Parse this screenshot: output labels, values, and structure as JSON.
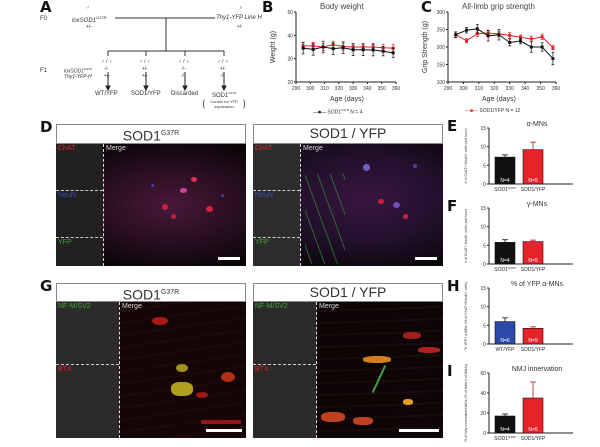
{
  "panels": {
    "A": {
      "label": "A",
      "gen_f0": "F0",
      "gen_f1": "F1",
      "male_symbol": "♂",
      "female_symbol": "♀",
      "mf_symbol": "♂ / ♀",
      "parent_left": {
        "name": "loxSOD1",
        "sup": "G37R",
        "genotype": "+/-"
      },
      "parent_right": {
        "name": "Thy1-YFP Line H",
        "genotype": "+/-"
      },
      "row_labels": {
        "lox": "loxSOD1",
        "lox_sup": "G37R",
        "thy": "Thy1-YFP-H"
      },
      "offspring": [
        {
          "lox": "-/-",
          "thy": "+/-",
          "result": "WT/YFP"
        },
        {
          "lox": "+/-",
          "thy": "+/-",
          "result": "SOD1/YFP"
        },
        {
          "lox": "-/-",
          "thy": "-/-",
          "result": "Discarded"
        },
        {
          "lox": "+/-",
          "thy": "-/-",
          "result": "SOD1",
          "result_sup": "G37R",
          "note": "Control for YFP expression"
        }
      ]
    },
    "B": {
      "label": "B"
    },
    "C": {
      "label": "C"
    },
    "D": {
      "label": "D",
      "left_title": "SOD1",
      "left_sup": "G37R",
      "right_title": "SOD1 / YFP",
      "channels": [
        "ChAT",
        "NeuN",
        "YFP"
      ],
      "merge": "Merge"
    },
    "E": {
      "label": "E"
    },
    "F": {
      "label": "F"
    },
    "G": {
      "label": "G",
      "left_title": "SOD1",
      "left_sup": "G37R",
      "right_title": "SOD1 / YFP",
      "channels": [
        "NF-M/SV2",
        "BTX"
      ],
      "merge": "Merge"
    },
    "H": {
      "label": "H"
    },
    "I": {
      "label": "I"
    }
  },
  "colors": {
    "sod1_g37r": "#111111",
    "sod1_yfp": "#e8222a",
    "wt_yfp": "#2b4aa8",
    "chat": "#d9262c",
    "neun": "#3f4fb8",
    "yfp": "#3fa83a",
    "btx": "#d9262c",
    "nfm": "#3fa83a"
  },
  "chart_data": [
    {
      "id": "B",
      "type": "line",
      "title": "Body weight",
      "xlabel": "Age (days)",
      "ylabel": "Weight (g)",
      "xlim": [
        290,
        360
      ],
      "ylim": [
        20,
        50
      ],
      "xticks": [
        290,
        300,
        310,
        320,
        330,
        340,
        350,
        360
      ],
      "yticks": [
        20,
        30,
        40,
        50
      ],
      "x": [
        295,
        302,
        309,
        316,
        323,
        330,
        337,
        344,
        351,
        358
      ],
      "series": [
        {
          "name": "SOD1G37R N = 4",
          "legend": "SOD1",
          "legend_sup": "G37R",
          "legend_n": "N = 4",
          "color": "#111111",
          "values": [
            34.5,
            34,
            35,
            34.3,
            34.7,
            33.8,
            33.8,
            33.7,
            33.2,
            32.5
          ],
          "err": [
            2.5,
            2.5,
            2.5,
            2.5,
            2.5,
            2.5,
            2.5,
            2.5,
            2,
            2
          ]
        },
        {
          "name": "SOD1/YFP N = 12",
          "legend": "SOD1/YFP",
          "legend_n": "N = 12",
          "color": "#e8222a",
          "values": [
            35.5,
            35.5,
            35,
            36,
            35.2,
            35,
            35,
            35,
            34.7,
            34.5
          ],
          "err": [
            1.5,
            1.5,
            1.5,
            1.5,
            1.5,
            1.5,
            1.5,
            1.5,
            1.5,
            1.5
          ]
        }
      ]
    },
    {
      "id": "C",
      "type": "line",
      "title": "All-limb grip strength",
      "xlabel": "Age (days)",
      "ylabel": "Grip Strength (g)",
      "xlim": [
        290,
        360
      ],
      "ylim": [
        100,
        300
      ],
      "xticks": [
        290,
        300,
        310,
        320,
        330,
        340,
        350,
        360
      ],
      "yticks": [
        100,
        150,
        200,
        250,
        300
      ],
      "x": [
        295,
        302,
        309,
        316,
        323,
        330,
        337,
        344,
        351,
        358
      ],
      "series": [
        {
          "name": "SOD1G37R N = 4",
          "color": "#111111",
          "values": [
            235,
            248,
            252,
            232,
            235,
            213,
            217,
            200,
            200,
            167
          ],
          "err": [
            8,
            8,
            12,
            15,
            15,
            10,
            8,
            15,
            12,
            18
          ]
        },
        {
          "name": "SOD1/YFP N = 12",
          "color": "#e8222a",
          "values": [
            235,
            218,
            238,
            240,
            237,
            233,
            228,
            223,
            229,
            198
          ],
          "err": [
            8,
            6,
            8,
            8,
            8,
            8,
            6,
            8,
            8,
            6
          ]
        }
      ]
    },
    {
      "id": "E",
      "type": "bar",
      "title": "α-MNs",
      "ylabel": "# of ChAT+ NeuN+ cells (ant.horn)",
      "ylim": [
        0,
        15
      ],
      "yticks": [
        0,
        5,
        10,
        15
      ],
      "categories": [
        "SOD1G37R",
        "SOD1/YFP"
      ],
      "cat_labels": [
        {
          "t": "SOD1",
          "sup": "G37R"
        },
        {
          "t": "SOD1/YFP",
          "sup": ""
        }
      ],
      "values": [
        7.2,
        9.2
      ],
      "err": [
        0.6,
        2.0
      ],
      "n_labels": [
        "N=4",
        "N=5"
      ],
      "colors": [
        "#111111",
        "#e8222a"
      ]
    },
    {
      "id": "F",
      "type": "bar",
      "title": "γ-MNs",
      "ylabel": "# of ChAT+ NeuN- cells (ant.horn)",
      "ylim": [
        0,
        15
      ],
      "yticks": [
        0,
        5,
        10,
        15
      ],
      "categories": [
        "SOD1G37R",
        "SOD1/YFP"
      ],
      "cat_labels": [
        {
          "t": "SOD1",
          "sup": "G37R"
        },
        {
          "t": "SOD1/YFP",
          "sup": ""
        }
      ],
      "values": [
        5.8,
        6.0
      ],
      "err": [
        0.7,
        0.4
      ],
      "n_labels": [
        "N=4",
        "N=5"
      ],
      "colors": [
        "#111111",
        "#e8222a"
      ]
    },
    {
      "id": "H",
      "type": "bar",
      "title": "% of YFP α-MNs",
      "ylabel": "% YFP+ α-MNs (% of ChAT+/NeuN+ cells)",
      "ylim": [
        0,
        15
      ],
      "yticks": [
        0,
        5,
        10,
        15
      ],
      "categories": [
        "WT/YFP",
        "SOD1/YFP"
      ],
      "cat_labels": [
        {
          "t": "WT/YFP",
          "sup": ""
        },
        {
          "t": "SOD1/YFP",
          "sup": ""
        }
      ],
      "values": [
        6.0,
        4.2
      ],
      "err": [
        1.0,
        0.4
      ],
      "n_labels": [
        "N=6",
        "N=9"
      ],
      "colors": [
        "#2b4aa8",
        "#e8222a"
      ]
    },
    {
      "id": "I",
      "type": "bar",
      "title": "NMJ innervation",
      "ylabel": "% of fully innervated NMJs (% of total # of NMJs)",
      "ylim": [
        0,
        60
      ],
      "yticks": [
        0,
        20,
        40,
        60
      ],
      "categories": [
        "SOD1G37R",
        "SOD1/YFP"
      ],
      "cat_labels": [
        {
          "t": "SOD1",
          "sup": "G37R"
        },
        {
          "t": "SOD1/YFP",
          "sup": ""
        }
      ],
      "values": [
        17,
        35
      ],
      "err": [
        2,
        16
      ],
      "n_labels": [
        "N=4",
        "N=5"
      ],
      "colors": [
        "#111111",
        "#e8222a"
      ]
    }
  ]
}
